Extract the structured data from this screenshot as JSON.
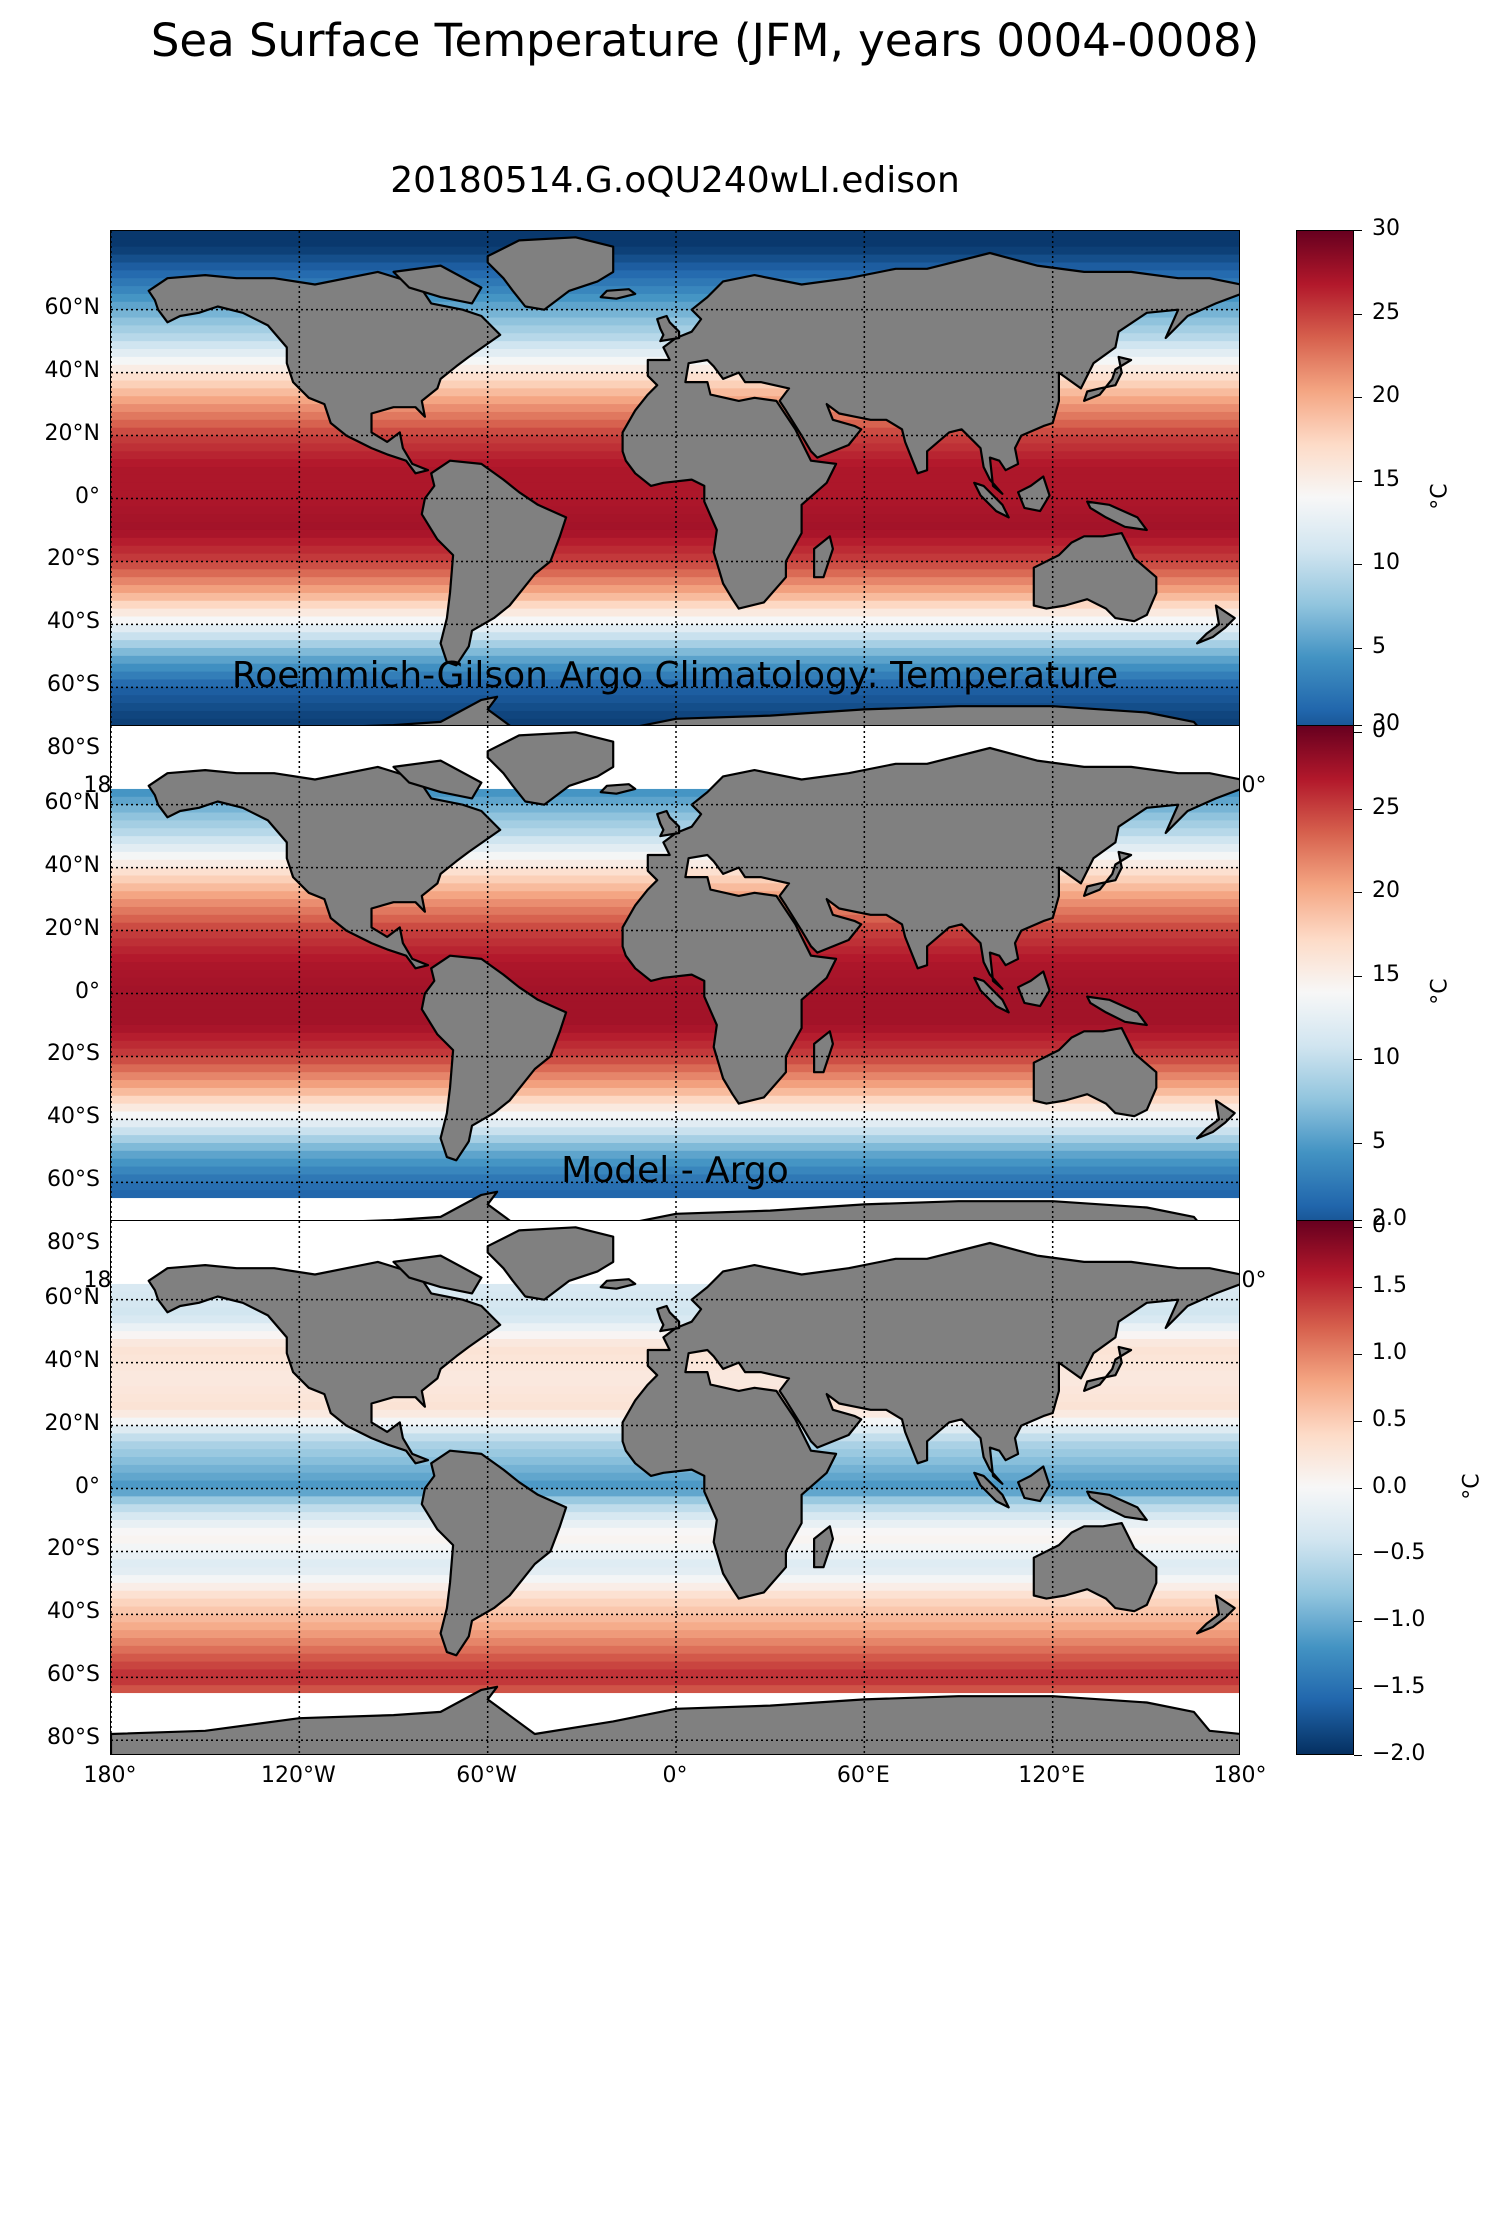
{
  "figure": {
    "title": "Sea Surface Temperature (JFM, years 0004-0008)",
    "lat_ticks": [
      "60°N",
      "40°N",
      "20°N",
      "0°",
      "20°S",
      "40°S",
      "60°S",
      "80°S"
    ],
    "lon_ticks": [
      "180°",
      "120°W",
      "60°W",
      "0°",
      "60°E",
      "120°E",
      "180°"
    ]
  },
  "chart_data": [
    {
      "type": "heatmap",
      "title": "20180514.G.oQU240wLI.edison",
      "xlim": [
        -180,
        180
      ],
      "ylim": [
        -85,
        85
      ],
      "lat_ticks_values": [
        60,
        40,
        20,
        0,
        -20,
        -40,
        -60,
        -80
      ],
      "lon_ticks_values": [
        -180,
        -120,
        -60,
        0,
        60,
        120,
        180
      ],
      "grid": true,
      "colormap": "RdBu_r",
      "land_color": "#808080",
      "clim": [
        -2,
        30
      ],
      "colorbar_ticks": [
        "30",
        "25",
        "20",
        "15",
        "10",
        "5",
        "0"
      ],
      "colorbar_tick_values": [
        30,
        25,
        20,
        15,
        10,
        5,
        0
      ],
      "colorbar_label": "°C",
      "zonal_mean_profile": {
        "lat": [
          80,
          70,
          60,
          50,
          40,
          30,
          20,
          10,
          0,
          -10,
          -20,
          -30,
          -40,
          -50,
          -60,
          -70,
          -80
        ],
        "value": [
          -1.5,
          2,
          6,
          10,
          16,
          21,
          25,
          27,
          27,
          27.5,
          25,
          20,
          13,
          6,
          1,
          -1,
          -1.5
        ]
      }
    },
    {
      "type": "heatmap",
      "title": "Roemmich-Gilson Argo Climatology: Temperature",
      "xlim": [
        -180,
        180
      ],
      "ylim": [
        -85,
        85
      ],
      "lat_ticks_values": [
        60,
        40,
        20,
        0,
        -20,
        -40,
        -60,
        -80
      ],
      "lon_ticks_values": [
        -180,
        -120,
        -60,
        0,
        60,
        120,
        180
      ],
      "grid": true,
      "colormap": "RdBu_r",
      "land_color": "#808080",
      "clim": [
        -2,
        30
      ],
      "colorbar_ticks": [
        "30",
        "25",
        "20",
        "15",
        "10",
        "5",
        "0"
      ],
      "colorbar_tick_values": [
        30,
        25,
        20,
        15,
        10,
        5,
        0
      ],
      "colorbar_label": "°C",
      "data_coverage_lat": [
        -65,
        65
      ],
      "zonal_mean_profile": {
        "lat": [
          65,
          60,
          50,
          40,
          30,
          20,
          10,
          0,
          -10,
          -20,
          -30,
          -40,
          -50,
          -60,
          -65
        ],
        "value": [
          4,
          6,
          10,
          16,
          21,
          25,
          27,
          27.5,
          27.5,
          25,
          20,
          13,
          6,
          2,
          1
        ]
      }
    },
    {
      "type": "heatmap",
      "title": "Model - Argo",
      "xlim": [
        -180,
        180
      ],
      "ylim": [
        -85,
        85
      ],
      "lat_ticks_values": [
        60,
        40,
        20,
        0,
        -20,
        -40,
        -60,
        -80
      ],
      "lon_ticks_values": [
        -180,
        -120,
        -60,
        0,
        60,
        120,
        180
      ],
      "grid": true,
      "colormap": "RdBu_r",
      "land_color": "#808080",
      "clim": [
        -2,
        2
      ],
      "colorbar_ticks": [
        "2.0",
        "1.5",
        "1.0",
        "0.5",
        "0.0",
        "−0.5",
        "−1.0",
        "−1.5",
        "−2.0"
      ],
      "colorbar_tick_values": [
        2.0,
        1.5,
        1.0,
        0.5,
        0.0,
        -0.5,
        -1.0,
        -1.5,
        -2.0
      ],
      "colorbar_label": "°C",
      "data_coverage_lat": [
        -65,
        65
      ],
      "zonal_mean_profile": {
        "lat": [
          65,
          55,
          45,
          35,
          25,
          15,
          5,
          0,
          -5,
          -15,
          -25,
          -35,
          -45,
          -55,
          -60,
          -65
        ],
        "value": [
          -0.3,
          -0.4,
          0.3,
          0.2,
          0.3,
          -0.6,
          -1.0,
          -1.2,
          -0.6,
          0.1,
          -0.3,
          0.4,
          0.8,
          1.3,
          1.5,
          1.2
        ]
      }
    }
  ]
}
